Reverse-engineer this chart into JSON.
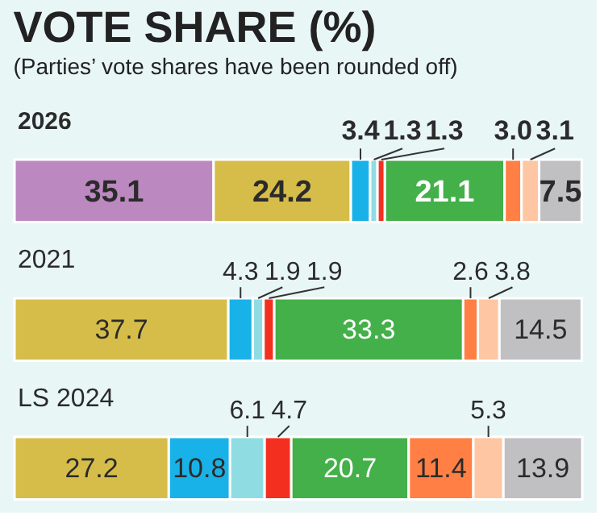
{
  "chart_data": {
    "type": "bar",
    "orientation": "horizontal",
    "stacked": true,
    "legend": false,
    "title": "VOTE SHARE (%)",
    "subtitle": "(Parties’ vote shares have been rounded off)",
    "categories": [
      "2026",
      "2021",
      "LS 2024"
    ],
    "series": [
      {
        "color": "#bb88c0",
        "values": [
          35.1,
          null,
          null
        ],
        "value_labels": [
          "35.1",
          null,
          null
        ]
      },
      {
        "color": "#d6bd4a",
        "values": [
          24.2,
          37.7,
          27.2
        ],
        "value_labels": [
          "24.2",
          "37.7",
          "27.2"
        ]
      },
      {
        "color": "#19b2e8",
        "values": [
          3.4,
          4.3,
          10.8
        ],
        "value_labels": [
          "3.4",
          "4.3",
          "10.8"
        ]
      },
      {
        "color": "#8fdce3",
        "values": [
          1.3,
          1.9,
          6.1
        ],
        "value_labels": [
          "1.3",
          "1.9",
          "6.1"
        ]
      },
      {
        "color": "#f33020",
        "values": [
          1.3,
          1.9,
          4.7
        ],
        "value_labels": [
          "1.3",
          "1.9",
          "4.7"
        ]
      },
      {
        "color": "#43b049",
        "values": [
          21.1,
          33.3,
          20.7
        ],
        "value_labels": [
          "21.1",
          "33.3",
          "20.7"
        ]
      },
      {
        "color": "#ff7f45",
        "values": [
          3.0,
          2.6,
          11.4
        ],
        "value_labels": [
          "3.0",
          "2.6",
          "11.4"
        ]
      },
      {
        "color": "#ffc6a3",
        "values": [
          3.1,
          3.8,
          5.3
        ],
        "value_labels": [
          "3.1",
          "3.8",
          "5.3"
        ]
      },
      {
        "color": "#c0c0c2",
        "values": [
          7.5,
          14.5,
          13.9
        ],
        "value_labels": [
          "7.5",
          "14.5",
          "13.9"
        ]
      }
    ]
  }
}
